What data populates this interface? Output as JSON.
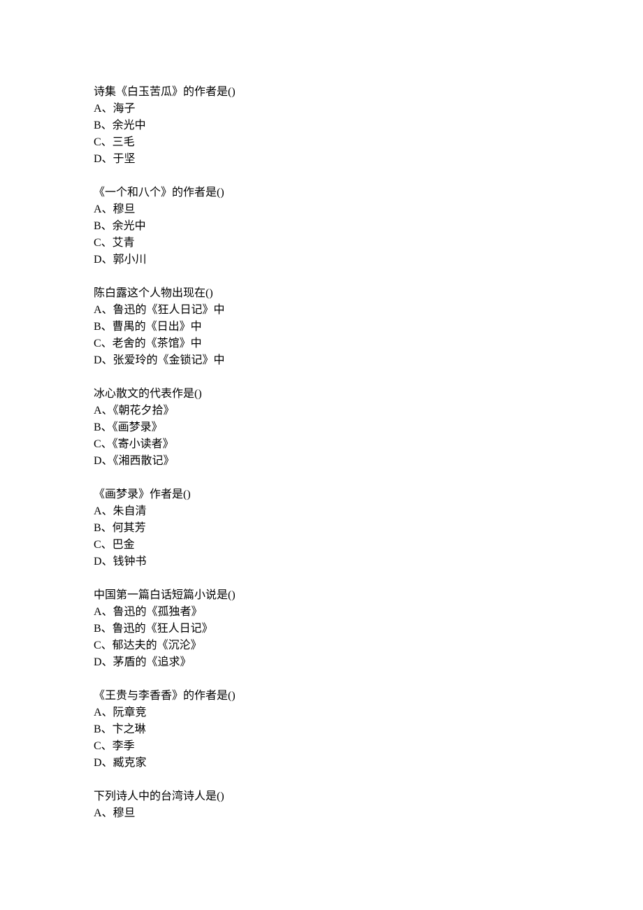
{
  "questions": [
    {
      "stem": "诗集《白玉苦瓜》的作者是()",
      "options": [
        "A、海子",
        "B、余光中",
        "C、三毛",
        "D、于坚"
      ]
    },
    {
      "stem": "《一个和八个》的作者是()",
      "options": [
        "A、穆旦",
        "B、余光中",
        "C、艾青",
        "D、郭小川"
      ]
    },
    {
      "stem": "陈白露这个人物出现在()",
      "options": [
        "A、鲁迅的《狂人日记》中",
        "B、曹禺的《日出》中",
        "C、老舍的《茶馆》中",
        "D、张爱玲的《金锁记》中"
      ]
    },
    {
      "stem": "冰心散文的代表作是()",
      "options": [
        "A、《朝花夕拾》",
        "B、《画梦录》",
        "C、《寄小读者》",
        "D、《湘西散记》"
      ]
    },
    {
      "stem": "《画梦录》作者是()",
      "options": [
        "A、朱自清",
        "B、何其芳",
        "C、巴金",
        "D、钱钟书"
      ]
    },
    {
      "stem": "中国第一篇白话短篇小说是()",
      "options": [
        "A、鲁迅的《孤独者》",
        "B、鲁迅的《狂人日记》",
        "C、郁达夫的《沉沦》",
        "D、茅盾的《追求》"
      ]
    },
    {
      "stem": "《王贵与李香香》的作者是()",
      "options": [
        "A、阮章竞",
        "B、卞之琳",
        "C、李季",
        "D、臧克家"
      ]
    },
    {
      "stem": "下列诗人中的台湾诗人是()",
      "options": [
        "A、穆旦"
      ]
    }
  ]
}
